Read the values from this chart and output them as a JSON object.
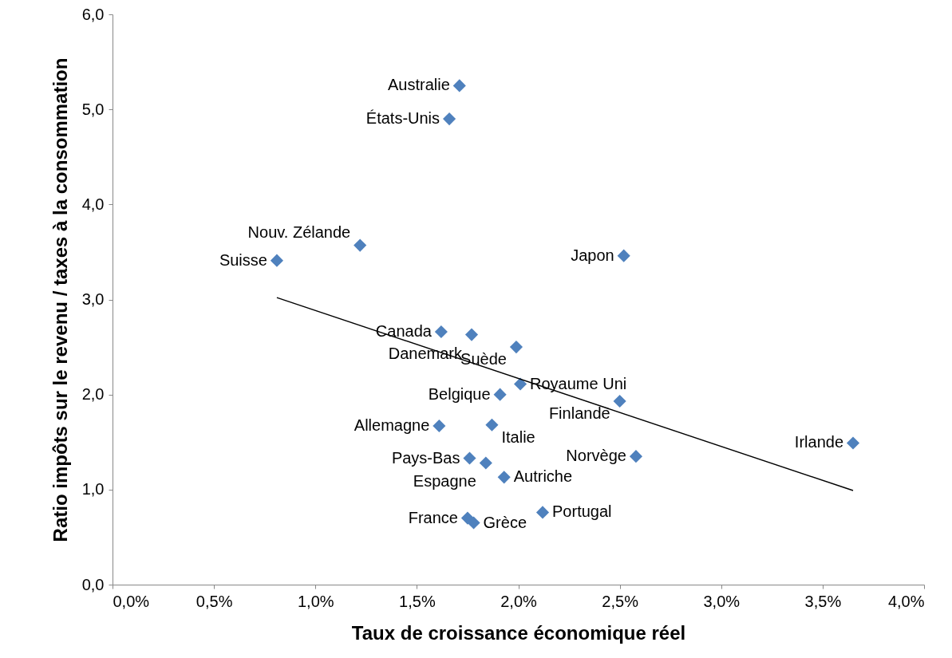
{
  "chart_data": {
    "type": "scatter",
    "xlabel": "Taux de croissance économique réel",
    "ylabel": "Ratio impôts sur le revenu / taxes à la consommation",
    "xlim": [
      0,
      4
    ],
    "ylim": [
      0,
      6
    ],
    "xticks": [
      {
        "value": 0,
        "label": "0,0%"
      },
      {
        "value": 0.5,
        "label": "0,5%"
      },
      {
        "value": 1,
        "label": "1,0%"
      },
      {
        "value": 1.5,
        "label": "1,5%"
      },
      {
        "value": 2,
        "label": "2,0%"
      },
      {
        "value": 2.5,
        "label": "2,5%"
      },
      {
        "value": 3,
        "label": "3,0%"
      },
      {
        "value": 3.5,
        "label": "3,5%"
      },
      {
        "value": 4,
        "label": "4,0%"
      }
    ],
    "yticks": [
      {
        "value": 0,
        "label": "0,0"
      },
      {
        "value": 1,
        "label": "1,0"
      },
      {
        "value": 2,
        "label": "2,0"
      },
      {
        "value": 3,
        "label": "3,0"
      },
      {
        "value": 4,
        "label": "4,0"
      },
      {
        "value": 5,
        "label": "5,0"
      },
      {
        "value": 6,
        "label": "6,0"
      }
    ],
    "series": [
      {
        "type": "scatter",
        "marker": "diamond",
        "color": "#4f81bd",
        "x": [
          1.71,
          1.66,
          1.22,
          0.81,
          2.52,
          1.62,
          1.77,
          1.99,
          2.01,
          1.91,
          2.5,
          1.61,
          1.87,
          3.65,
          1.76,
          1.84,
          2.58,
          1.93,
          2.12,
          1.75,
          1.78
        ],
        "values": [
          5.25,
          4.9,
          3.57,
          3.41,
          3.46,
          2.66,
          2.63,
          2.5,
          2.11,
          2.0,
          1.93,
          1.67,
          1.68,
          1.49,
          1.33,
          1.28,
          1.35,
          1.13,
          0.76,
          0.7,
          0.65
        ]
      },
      {
        "type": "line",
        "marker": "none",
        "color": "#000000",
        "x": [
          0.81,
          3.65
        ],
        "values": [
          3.02,
          0.99
        ]
      }
    ],
    "annotations": [
      {
        "text": "Australie",
        "x": 1.71,
        "y": 5.25
      },
      {
        "text": "États-Unis",
        "x": 1.66,
        "y": 4.9
      },
      {
        "text": "Nouv. Zélande",
        "x": 1.22,
        "y": 3.57
      },
      {
        "text": "Suisse",
        "x": 0.81,
        "y": 3.41
      },
      {
        "text": "Japon",
        "x": 2.52,
        "y": 3.46
      },
      {
        "text": "Canada",
        "x": 1.62,
        "y": 2.66
      },
      {
        "text": "Danemark",
        "x": 1.77,
        "y": 2.63
      },
      {
        "text": "Suède",
        "x": 1.99,
        "y": 2.5
      },
      {
        "text": "Royaume Uni",
        "x": 2.01,
        "y": 2.11
      },
      {
        "text": "Belgique",
        "x": 1.91,
        "y": 2.0
      },
      {
        "text": "Finlande",
        "x": 2.5,
        "y": 1.93
      },
      {
        "text": "Allemagne",
        "x": 1.61,
        "y": 1.67
      },
      {
        "text": "Italie",
        "x": 1.87,
        "y": 1.68
      },
      {
        "text": "Irlande",
        "x": 3.65,
        "y": 1.49
      },
      {
        "text": "Pays-Bas",
        "x": 1.76,
        "y": 1.33
      },
      {
        "text": "Espagne",
        "x": 1.84,
        "y": 1.28
      },
      {
        "text": "Norvège",
        "x": 2.58,
        "y": 1.35
      },
      {
        "text": "Autriche",
        "x": 1.93,
        "y": 1.13
      },
      {
        "text": "Portugal",
        "x": 2.12,
        "y": 0.76
      },
      {
        "text": "France",
        "x": 1.75,
        "y": 0.7
      },
      {
        "text": "Grèce",
        "x": 1.78,
        "y": 0.65
      }
    ]
  }
}
